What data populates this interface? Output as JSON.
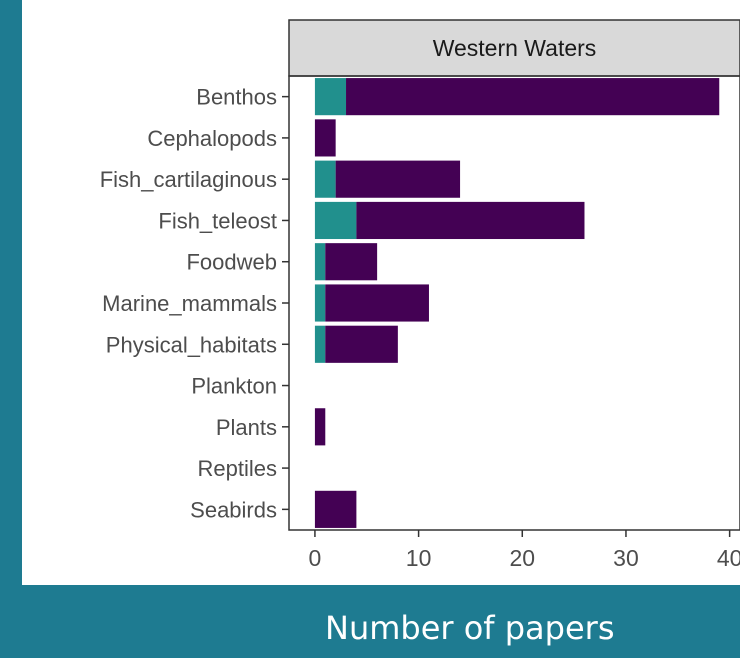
{
  "chart_data": {
    "type": "bar",
    "orientation": "horizontal",
    "stacked": true,
    "facet_title": "Western Waters",
    "xlabel": "Number of papers",
    "ylabel": "",
    "xlim": [
      -2.5,
      41
    ],
    "xticks": [
      0,
      10,
      20,
      30,
      40
    ],
    "categories": [
      "Benthos",
      "Cephalopods",
      "Fish_cartilaginous",
      "Fish_teleost",
      "Foodweb",
      "Marine_mammals",
      "Physical_habitats",
      "Plankton",
      "Plants",
      "Reptiles",
      "Seabirds"
    ],
    "series": [
      {
        "values": [
          3,
          0,
          2,
          4,
          1,
          1,
          1,
          0,
          0,
          0,
          0
        ],
        "color": "#21908d"
      },
      {
        "values": [
          36,
          2,
          12,
          22,
          5,
          10,
          7,
          0,
          1,
          0,
          4
        ],
        "color": "#440154"
      }
    ],
    "grid": false,
    "legend": "none"
  },
  "colors": {
    "background": "#1e7b91",
    "panel": "#ffffff",
    "strip": "#d9d9d9",
    "axis_text": "#4d4d4d"
  }
}
